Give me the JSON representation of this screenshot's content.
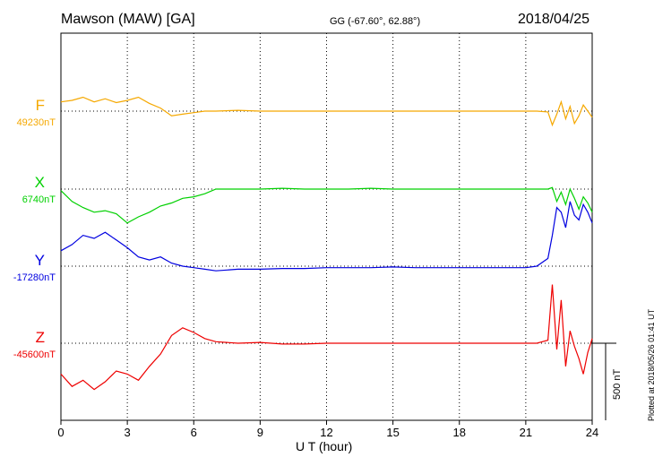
{
  "header": {
    "station": "Mawson (MAW)  [GA]",
    "coords": "GG (-67.60°,  62.88°)",
    "date": "2018/04/25"
  },
  "plotted_note": "Plotted at 2018/05/26 01:41 UT",
  "chart_data": {
    "type": "line",
    "xlabel": "U T (hour)",
    "xlim": [
      0,
      24
    ],
    "xticks": [
      0,
      3,
      6,
      9,
      12,
      15,
      18,
      21,
      24
    ],
    "grid": "dotted vertical every 3 h",
    "scale_bar": {
      "label": "500 nT",
      "value_nT": 500
    },
    "components": [
      {
        "name": "F",
        "baseline_label": "49230nT",
        "color": "#f5a800",
        "x": [
          0,
          0.5,
          1,
          1.5,
          2,
          2.5,
          3,
          3.5,
          4,
          4.5,
          5,
          5.5,
          6,
          6.5,
          7,
          8,
          9,
          10,
          11,
          12,
          13,
          14,
          15,
          16,
          17,
          18,
          19,
          20,
          21,
          21.5,
          22,
          22.2,
          22.4,
          22.6,
          22.8,
          23,
          23.2,
          23.4,
          23.6,
          23.8,
          24
        ],
        "y": [
          60,
          70,
          90,
          60,
          80,
          55,
          70,
          90,
          50,
          20,
          -30,
          -20,
          -10,
          0,
          0,
          5,
          0,
          0,
          0,
          0,
          0,
          0,
          0,
          0,
          0,
          0,
          0,
          0,
          0,
          0,
          -5,
          -90,
          -20,
          60,
          -50,
          30,
          -80,
          -30,
          40,
          0,
          -40
        ]
      },
      {
        "name": "X",
        "baseline_label": "6740nT",
        "color": "#00d000",
        "x": [
          0,
          0.5,
          1,
          1.5,
          2,
          2.5,
          3,
          3.5,
          4,
          4.5,
          5,
          5.5,
          6,
          6.5,
          7,
          8,
          9,
          10,
          11,
          12,
          13,
          14,
          15,
          16,
          17,
          18,
          19,
          20,
          21,
          21.5,
          22,
          22.2,
          22.4,
          22.6,
          22.8,
          23,
          23.2,
          23.4,
          23.6,
          23.8,
          24
        ],
        "y": [
          -10,
          -80,
          -120,
          -150,
          -140,
          -160,
          -220,
          -180,
          -150,
          -110,
          -90,
          -60,
          -50,
          -30,
          0,
          0,
          0,
          5,
          0,
          0,
          0,
          5,
          0,
          0,
          0,
          0,
          0,
          0,
          0,
          0,
          0,
          10,
          -80,
          -20,
          -100,
          0,
          -60,
          -130,
          -50,
          -90,
          -150
        ]
      },
      {
        "name": "Y",
        "baseline_label": "-17280nT",
        "color": "#0000e0",
        "x": [
          0,
          0.5,
          1,
          1.5,
          2,
          2.5,
          3,
          3.5,
          4,
          4.5,
          5,
          5.5,
          6,
          6.5,
          7,
          8,
          9,
          10,
          11,
          12,
          13,
          14,
          15,
          16,
          17,
          18,
          19,
          20,
          21,
          21.5,
          22,
          22.2,
          22.4,
          22.6,
          22.8,
          23,
          23.2,
          23.4,
          23.6,
          23.8,
          24
        ],
        "y": [
          100,
          140,
          200,
          180,
          220,
          170,
          120,
          60,
          40,
          60,
          20,
          0,
          -10,
          -20,
          -30,
          -20,
          -20,
          -15,
          -15,
          -10,
          -10,
          -10,
          -5,
          -10,
          -10,
          -10,
          -10,
          -10,
          -10,
          0,
          50,
          200,
          380,
          350,
          250,
          420,
          330,
          300,
          400,
          350,
          280
        ]
      },
      {
        "name": "Z",
        "baseline_label": "-45600nT",
        "color": "#ee0000",
        "x": [
          0,
          0.5,
          1,
          1.5,
          2,
          2.5,
          3,
          3.5,
          4,
          4.5,
          5,
          5.5,
          6,
          6.5,
          7,
          8,
          9,
          10,
          11,
          12,
          13,
          14,
          15,
          16,
          17,
          18,
          19,
          20,
          21,
          21.5,
          22,
          22.2,
          22.4,
          22.6,
          22.8,
          23,
          23.2,
          23.4,
          23.6,
          23.8,
          24
        ],
        "y": [
          -200,
          -280,
          -240,
          -300,
          -250,
          -180,
          -200,
          -240,
          -150,
          -70,
          50,
          100,
          70,
          30,
          10,
          0,
          5,
          -5,
          -5,
          0,
          0,
          0,
          0,
          0,
          0,
          0,
          0,
          0,
          0,
          0,
          20,
          380,
          -40,
          280,
          -150,
          80,
          -20,
          -100,
          -200,
          -60,
          30
        ]
      }
    ]
  }
}
